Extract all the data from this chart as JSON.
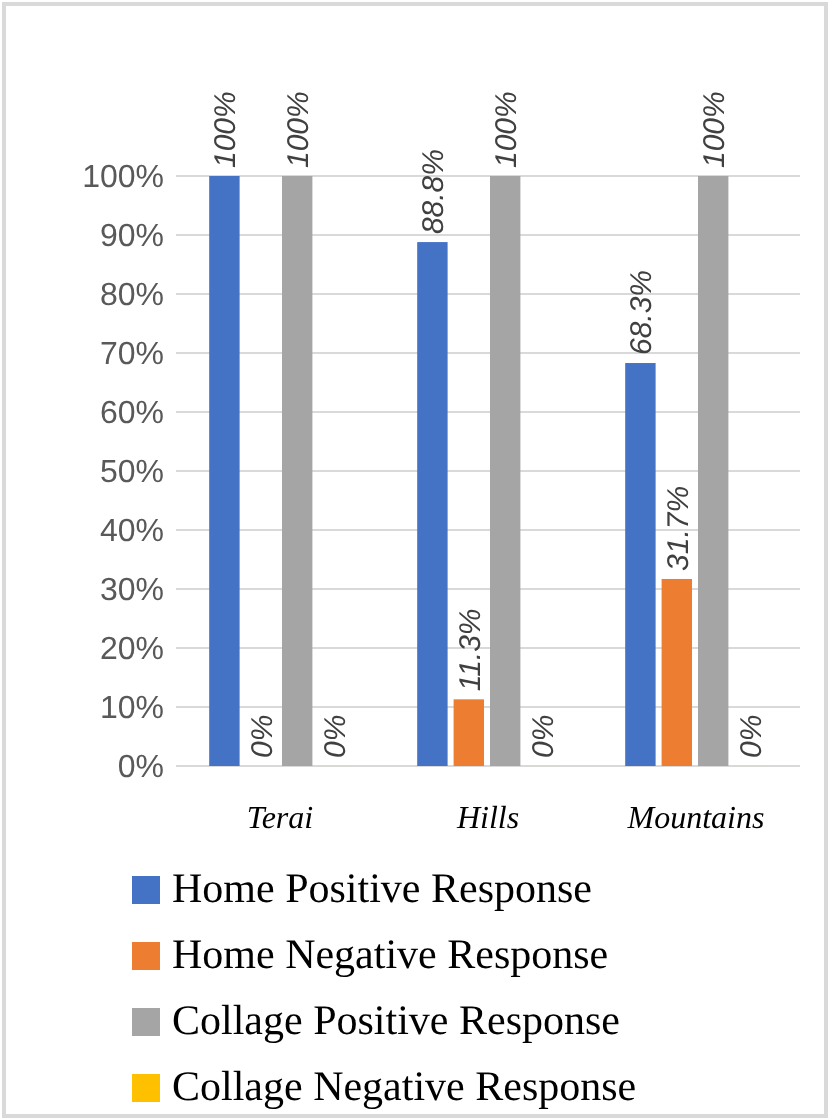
{
  "chart_data": {
    "type": "bar",
    "categories": [
      "Terai",
      "Hills",
      "Mountains"
    ],
    "series": [
      {
        "name": "Home Positive Response",
        "color": "#4472c4",
        "values": [
          100,
          88.8,
          68.3
        ],
        "value_labels": [
          "100%",
          "88.8%",
          "68.3%"
        ]
      },
      {
        "name": "Home Negative Response",
        "color": "#ed7d31",
        "values": [
          0,
          11.3,
          31.7
        ],
        "value_labels": [
          "0%",
          "11.3%",
          "31.7%"
        ]
      },
      {
        "name": "Collage Positive Response",
        "color": "#a5a5a5",
        "values": [
          100,
          100,
          100
        ],
        "value_labels": [
          "100%",
          "100%",
          "100%"
        ]
      },
      {
        "name": "Collage Negative Response",
        "color": "#ffc000",
        "values": [
          0,
          0,
          0
        ],
        "value_labels": [
          "0%",
          "0%",
          "0%"
        ]
      }
    ],
    "ylim": [
      0,
      100
    ],
    "yticks": [
      {
        "value": 0,
        "label": "0%"
      },
      {
        "value": 10,
        "label": "10%"
      },
      {
        "value": 20,
        "label": "20%"
      },
      {
        "value": 30,
        "label": "30%"
      },
      {
        "value": 40,
        "label": "40%"
      },
      {
        "value": 50,
        "label": "50%"
      },
      {
        "value": 60,
        "label": "60%"
      },
      {
        "value": 70,
        "label": "70%"
      },
      {
        "value": 80,
        "label": "80%"
      },
      {
        "value": 90,
        "label": "90%"
      },
      {
        "value": 100,
        "label": "100%"
      }
    ],
    "grid": "y",
    "legend": "bottom"
  }
}
